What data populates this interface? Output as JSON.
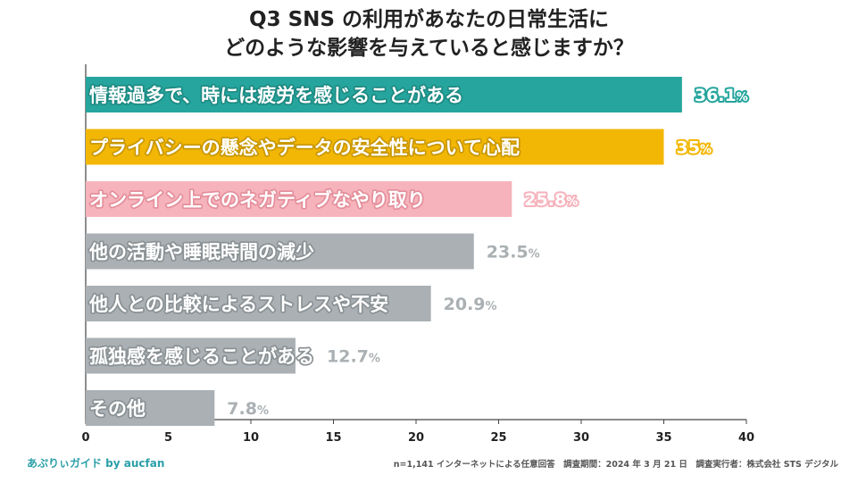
{
  "title": {
    "line1": "Q3 SNS の利用があなたの日常生活に",
    "line2": "どのような影響を与えていると感じますか？"
  },
  "chart_data": {
    "type": "bar",
    "orientation": "horizontal",
    "title": "Q3 SNS の利用があなたの日常生活に どのような影響を与えていると感じますか？",
    "categories": [
      "情報過多で、時には疲労を感じることがある",
      "プライバシーの懸念やデータの安全性について心配",
      "オンライン上でのネガティブなやり取り",
      "他の活動や睡眠時間の減少",
      "他人との比較によるストレスや不安",
      "孤独感を感じることがある",
      "その他"
    ],
    "values": [
      36.1,
      35,
      25.8,
      23.5,
      20.9,
      12.7,
      7.8
    ],
    "value_labels": [
      "36.1",
      "35",
      "25.8",
      "23.5",
      "20.9",
      "12.7",
      "7.8"
    ],
    "unit": "%",
    "colors": [
      "#25a59d",
      "#f2b705",
      "#f6b3bc",
      "#aab0b3",
      "#aab0b3",
      "#aab0b3",
      "#aab0b3"
    ],
    "value_colors": [
      "#25a59d",
      "#f2b705",
      "#f6b3bc",
      "#aab0b3",
      "#aab0b3",
      "#aab0b3",
      "#aab0b3"
    ],
    "label_stroke_colors": [
      "#1d8a83",
      "#c99700",
      "#e48f9b",
      "#8b9295",
      "#8b9295",
      "#8b9295",
      "#8b9295"
    ],
    "xlim": [
      0,
      40
    ],
    "xticks": [
      "0",
      "5",
      "10",
      "15",
      "20",
      "25",
      "30",
      "35",
      "40"
    ],
    "xlabel": "",
    "ylabel": ""
  },
  "footer": {
    "brand": "あぷりぃガイド by aucfan",
    "note": "n=1,141 インターネットによる任意回答　調査期間：2024 年 3 月 21 日　調査実行者：株式会社 STS デジタル"
  }
}
